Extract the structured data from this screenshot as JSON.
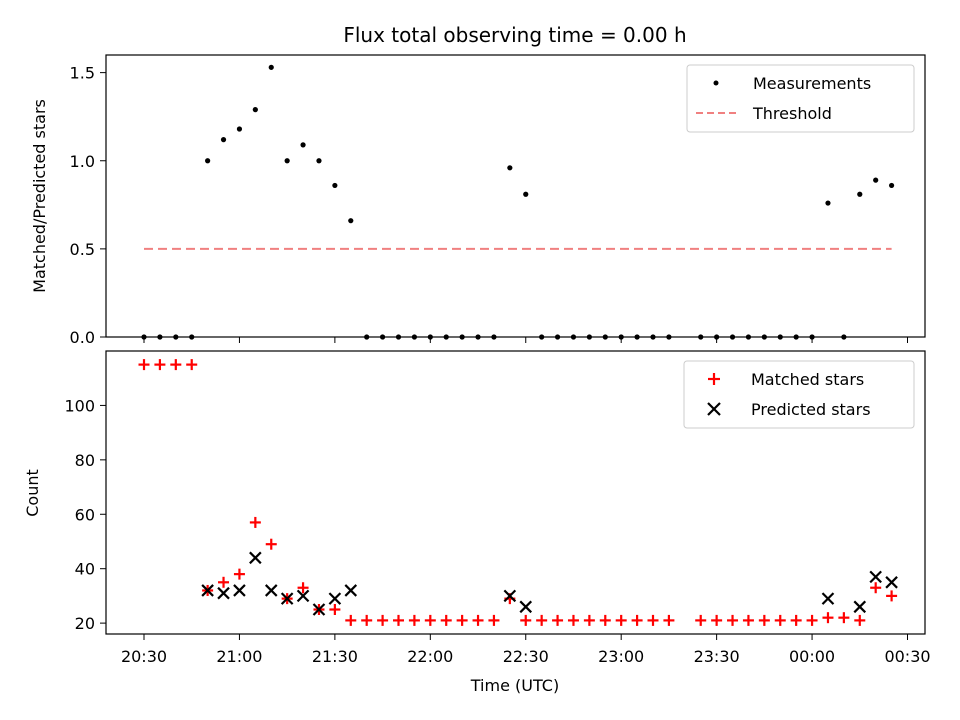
{
  "chart_data": [
    {
      "type": "scatter",
      "title": "Flux total observing time = 0.00 h",
      "xlabel": "",
      "ylabel": "Matched/Predicted stars",
      "ylim": [
        0,
        1.6
      ],
      "yticks": [
        "0.0",
        "0.5",
        "1.0",
        "1.5"
      ],
      "ytick_values": [
        0,
        0.5,
        1.0,
        1.5
      ],
      "legend_position": "top-right",
      "grid": false,
      "series": [
        {
          "name": "Measurements",
          "marker": "dot",
          "color": "#000000",
          "x": [
            "20:30",
            "20:35",
            "20:40",
            "20:45",
            "20:50",
            "20:55",
            "21:00",
            "21:05",
            "21:10",
            "21:15",
            "21:20",
            "21:25",
            "21:30",
            "21:35",
            "21:40",
            "21:45",
            "21:50",
            "21:55",
            "22:00",
            "22:05",
            "22:10",
            "22:15",
            "22:20",
            "22:25",
            "22:30",
            "22:35",
            "22:40",
            "22:45",
            "22:50",
            "22:55",
            "23:00",
            "23:05",
            "23:10",
            "23:15",
            "23:25",
            "23:30",
            "23:35",
            "23:40",
            "23:45",
            "23:50",
            "23:55",
            "00:00",
            "00:05",
            "00:10",
            "00:15",
            "00:20",
            "00:25"
          ],
          "y": [
            0,
            0,
            0,
            0,
            1.0,
            1.12,
            1.18,
            1.29,
            1.53,
            1.0,
            1.09,
            1.0,
            0.86,
            0.66,
            0,
            0,
            0,
            0,
            0,
            0,
            0,
            0,
            0,
            0.96,
            0.81,
            0,
            0,
            0,
            0,
            0,
            0,
            0,
            0,
            0,
            0,
            0,
            0,
            0,
            0,
            0,
            0,
            0,
            0.76,
            0,
            0.81,
            0.89,
            0.86
          ]
        },
        {
          "name": "Threshold",
          "marker": "dashed-line",
          "color": "#f08080",
          "x": [
            "20:30",
            "00:25"
          ],
          "y": [
            0.5,
            0.5
          ]
        }
      ]
    },
    {
      "type": "scatter",
      "title": "",
      "xlabel": "Time (UTC)",
      "ylabel": "Count",
      "ylim": [
        16,
        120
      ],
      "yticks": [
        "20",
        "40",
        "60",
        "80",
        "100"
      ],
      "ytick_values": [
        20,
        40,
        60,
        80,
        100
      ],
      "xticks": [
        "20:30",
        "21:00",
        "21:30",
        "22:00",
        "22:30",
        "23:00",
        "23:30",
        "00:00",
        "00:30"
      ],
      "legend_position": "top-right",
      "grid": false,
      "series": [
        {
          "name": "Matched stars",
          "marker": "plus",
          "color": "#ff0000",
          "x": [
            "20:30",
            "20:35",
            "20:40",
            "20:45",
            "20:50",
            "20:55",
            "21:00",
            "21:05",
            "21:10",
            "21:15",
            "21:20",
            "21:25",
            "21:30",
            "21:35",
            "21:40",
            "21:45",
            "21:50",
            "21:55",
            "22:00",
            "22:05",
            "22:10",
            "22:15",
            "22:20",
            "22:25",
            "22:30",
            "22:35",
            "22:40",
            "22:45",
            "22:50",
            "22:55",
            "23:00",
            "23:05",
            "23:10",
            "23:15",
            "23:25",
            "23:30",
            "23:35",
            "23:40",
            "23:45",
            "23:50",
            "23:55",
            "00:00",
            "00:05",
            "00:10",
            "00:15",
            "00:20",
            "00:25"
          ],
          "y": [
            115,
            115,
            115,
            115,
            32,
            35,
            38,
            57,
            49,
            29,
            33,
            25,
            25,
            21,
            21,
            21,
            21,
            21,
            21,
            21,
            21,
            21,
            21,
            29,
            21,
            21,
            21,
            21,
            21,
            21,
            21,
            21,
            21,
            21,
            21,
            21,
            21,
            21,
            21,
            21,
            21,
            21,
            22,
            22,
            21,
            33,
            30
          ]
        },
        {
          "name": "Predicted stars",
          "marker": "x",
          "color": "#000000",
          "x": [
            "20:50",
            "20:55",
            "21:00",
            "21:05",
            "21:10",
            "21:15",
            "21:20",
            "21:25",
            "21:30",
            "21:35",
            "22:25",
            "22:30",
            "00:05",
            "00:15",
            "00:20",
            "00:25"
          ],
          "y": [
            32,
            31,
            32,
            44,
            32,
            29,
            30,
            25,
            29,
            32,
            30,
            26,
            29,
            26,
            37,
            35
          ]
        }
      ]
    }
  ]
}
